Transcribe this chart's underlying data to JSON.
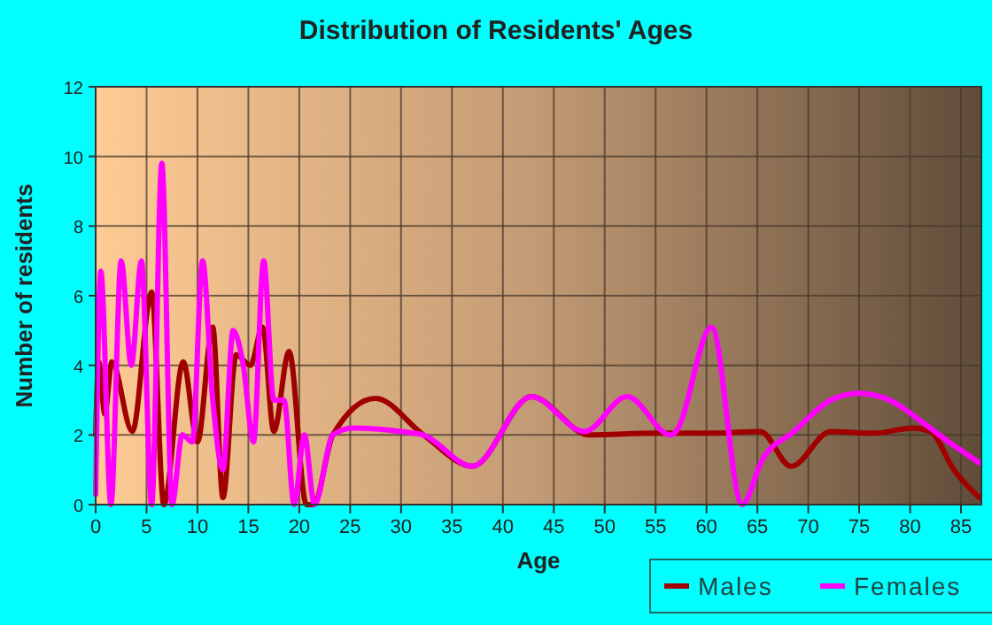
{
  "chart_data": {
    "type": "line",
    "title": "Distribution of Residents' Ages",
    "xlabel": "Age",
    "ylabel": "Number of residents",
    "xlim": [
      0,
      87
    ],
    "xticks": [
      0,
      5,
      10,
      15,
      20,
      25,
      30,
      35,
      40,
      45,
      50,
      55,
      60,
      65,
      70,
      75,
      80,
      85
    ],
    "ylim": [
      0,
      12
    ],
    "yticks": [
      0,
      2,
      4,
      6,
      8,
      10,
      12
    ],
    "grid": true,
    "legend": "bottom",
    "marker": "none",
    "line_style": "solid",
    "series": [
      {
        "name": "Males",
        "color": "#a00000",
        "x": [
          0,
          0.3,
          0.9,
          1.6,
          3.6,
          5.5,
          6.7,
          8.6,
          10,
          11.5,
          12.5,
          13.8,
          15.2,
          16.4,
          17.5,
          19,
          20.7,
          21.4,
          23.3,
          27.5,
          32.2,
          37,
          42.8,
          48.5,
          55,
          60,
          65.3,
          68.3,
          72.2,
          76.5,
          80.3,
          82,
          84.3,
          86.8
        ],
        "values": [
          2,
          4.1,
          2.6,
          4.1,
          2.1,
          6.1,
          0,
          4.1,
          1.8,
          5.1,
          0.2,
          4.3,
          4,
          5.1,
          2.1,
          4.4,
          0,
          0,
          2,
          3.05,
          2,
          1.1,
          3.1,
          2,
          2.05,
          2.05,
          2.1,
          1.1,
          2.1,
          2.05,
          2.2,
          2.1,
          1,
          0.2
        ]
      },
      {
        "name": "Females",
        "color": "#ff00ff",
        "x": [
          0,
          0.5,
          1.5,
          2.5,
          3.5,
          4.5,
          5.5,
          6.5,
          7.5,
          8.5,
          9.5,
          10.5,
          11.5,
          12.5,
          13.5,
          14.5,
          15.5,
          16.5,
          17.5,
          18.5,
          19.5,
          20.5,
          21.5,
          23.3,
          25.3,
          30,
          32.2,
          37,
          42.8,
          48,
          52.2,
          56.5,
          57,
          60.5,
          63.5,
          65.5,
          68.6,
          72.2,
          75,
          78,
          81.5,
          83.8,
          86.8
        ],
        "values": [
          0.3,
          6.7,
          0,
          7,
          4,
          7,
          0,
          9.8,
          0,
          2,
          1.8,
          7,
          3,
          1,
          5,
          4,
          1.8,
          7,
          3,
          3,
          0,
          2,
          0,
          2,
          2.2,
          2.1,
          2,
          1.1,
          3.1,
          2.1,
          3.1,
          2,
          2.1,
          5.1,
          0,
          1.3,
          2.1,
          3,
          3.2,
          3,
          2.3,
          1.8,
          1.2
        ]
      }
    ]
  }
}
